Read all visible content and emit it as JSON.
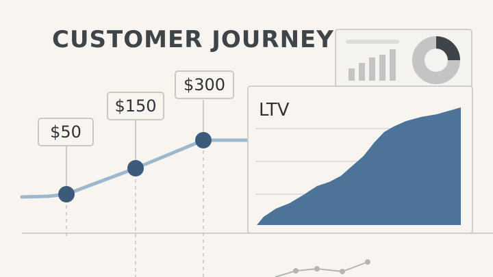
{
  "title": "CUSTOMER JOURNEY",
  "journey": {
    "points": [
      {
        "label": "$50",
        "value": 50
      },
      {
        "label": "$150",
        "value": 150
      },
      {
        "label": "$300",
        "value": 300
      }
    ]
  },
  "ltv_panel": {
    "label": "LTV"
  },
  "colors": {
    "background": "#f8f5f1",
    "accent": "#4d7399",
    "line": "#9db7cc",
    "dot": "#3c5a7c",
    "card_border": "#cfcfcf",
    "text": "#3e4448"
  }
}
